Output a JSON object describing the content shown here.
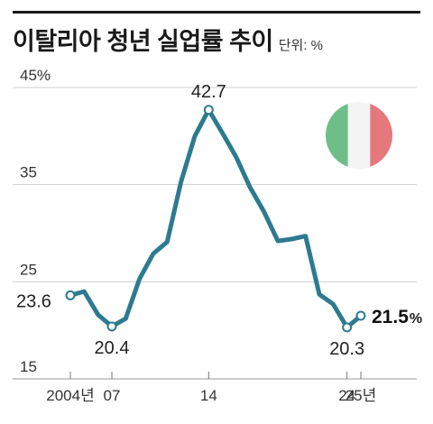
{
  "title": "이탈리아 청년 실업률 추이",
  "unit_label": "단위: %",
  "colors": {
    "line": "#2e7a90",
    "flag_green": "#6fbe8a",
    "flag_white": "#f4f4f4",
    "flag_red": "#e5787c",
    "grid": "#cfcfcf"
  },
  "chart_data": {
    "type": "line",
    "title": "이탈리아 청년 실업률 추이",
    "unit": "%",
    "x": [
      2004,
      2005,
      2006,
      2007,
      2008,
      2009,
      2010,
      2011,
      2012,
      2013,
      2014,
      2015,
      2016,
      2017,
      2018,
      2019,
      2020,
      2021,
      2022,
      2023,
      2024,
      2025
    ],
    "values": [
      23.6,
      24.0,
      21.6,
      20.4,
      21.2,
      25.3,
      27.9,
      29.1,
      35.3,
      40.0,
      42.7,
      40.3,
      37.8,
      34.7,
      32.2,
      29.2,
      29.4,
      29.7,
      23.7,
      22.7,
      20.3,
      21.5
    ],
    "ylim": [
      15,
      45
    ],
    "yticks": [
      {
        "value": 45,
        "label": "45%"
      },
      {
        "value": 35,
        "label": "35"
      },
      {
        "value": 25,
        "label": "25"
      },
      {
        "value": 15,
        "label": "15"
      }
    ],
    "xticks": [
      {
        "value": 2004,
        "label": "2004년"
      },
      {
        "value": 2007,
        "label": "07"
      },
      {
        "value": 2014,
        "label": "14"
      },
      {
        "value": 2024,
        "label": "24"
      },
      {
        "value": 2025,
        "label": "25년"
      }
    ],
    "annotations": [
      {
        "x": 2004,
        "value": 23.6,
        "label": "23.6"
      },
      {
        "x": 2007,
        "value": 20.4,
        "label": "20.4"
      },
      {
        "x": 2014,
        "value": 42.7,
        "label": "42.7"
      },
      {
        "x": 2024,
        "value": 20.3,
        "label": "20.3"
      },
      {
        "x": 2025,
        "value": 21.5,
        "label": "21.5",
        "suffix": "%"
      }
    ],
    "grid": true
  }
}
